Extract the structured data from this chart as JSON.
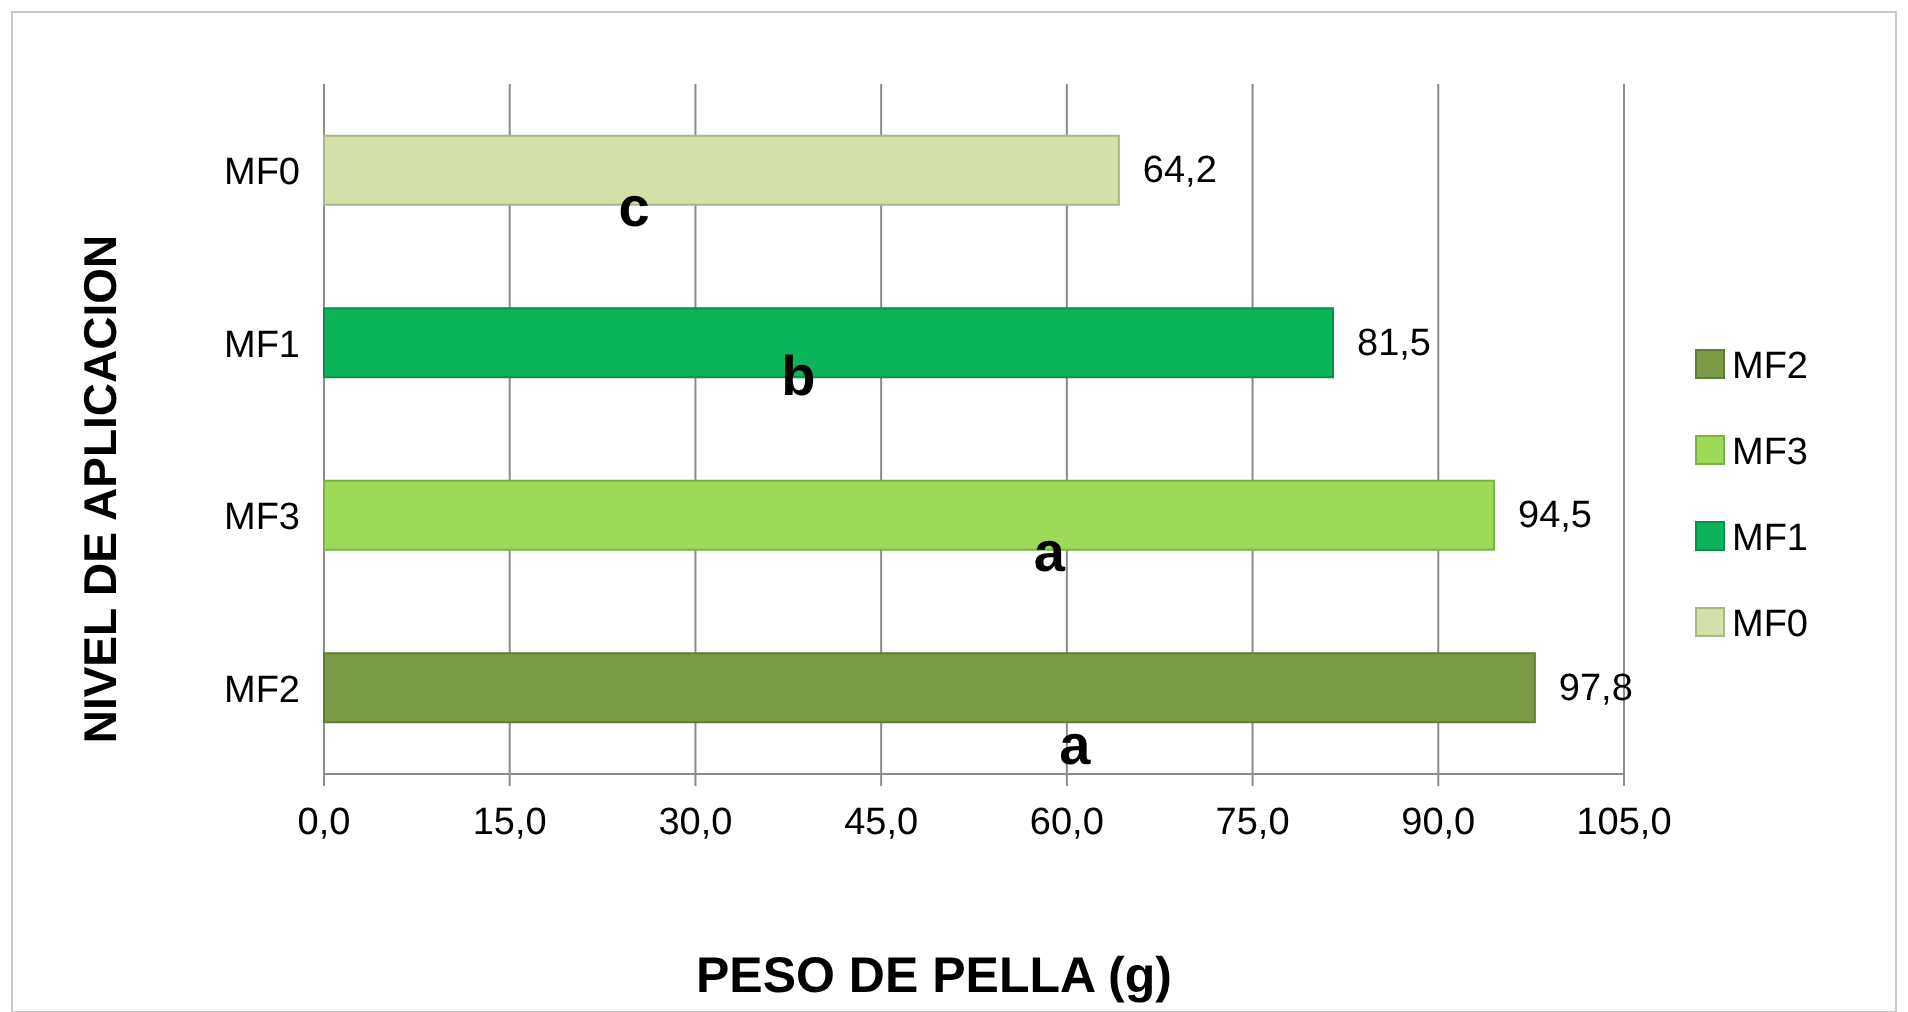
{
  "chart_data": {
    "type": "bar",
    "orientation": "horizontal",
    "xlabel": "PESO DE PELLA (g)",
    "ylabel": "NIVEL DE APLICACION",
    "categories": [
      "MF0",
      "MF1",
      "MF3",
      "MF2"
    ],
    "series": [
      {
        "name": "MF0",
        "color": "#d3e0a8",
        "values": [
          64.2,
          null,
          null,
          null
        ],
        "value_labels": [
          "64,2",
          null,
          null,
          null
        ]
      },
      {
        "name": "MF1",
        "color": "#0bb35a",
        "values": [
          null,
          81.5,
          null,
          null
        ],
        "value_labels": [
          null,
          "81,5",
          null,
          null
        ]
      },
      {
        "name": "MF3",
        "color": "#9bdb58",
        "values": [
          null,
          null,
          94.5,
          null
        ],
        "value_labels": [
          null,
          null,
          "94,5",
          null
        ]
      },
      {
        "name": "MF2",
        "color": "#7a9a45",
        "values": [
          null,
          null,
          null,
          97.8
        ],
        "value_labels": [
          null,
          null,
          null,
          "97,8"
        ]
      }
    ],
    "xlim": [
      0,
      105
    ],
    "xticks": [
      {
        "value": 0,
        "label": "0,0"
      },
      {
        "value": 15,
        "label": "15,0"
      },
      {
        "value": 30,
        "label": "30,0"
      },
      {
        "value": 45,
        "label": "45,0"
      },
      {
        "value": 60,
        "label": "60,0"
      },
      {
        "value": 75,
        "label": "75,0"
      },
      {
        "value": 90,
        "label": "90,0"
      },
      {
        "value": 105,
        "label": "105,0"
      }
    ],
    "grid": "x",
    "legend": "right",
    "annotations": [
      "c",
      "b",
      "a",
      "a"
    ]
  }
}
